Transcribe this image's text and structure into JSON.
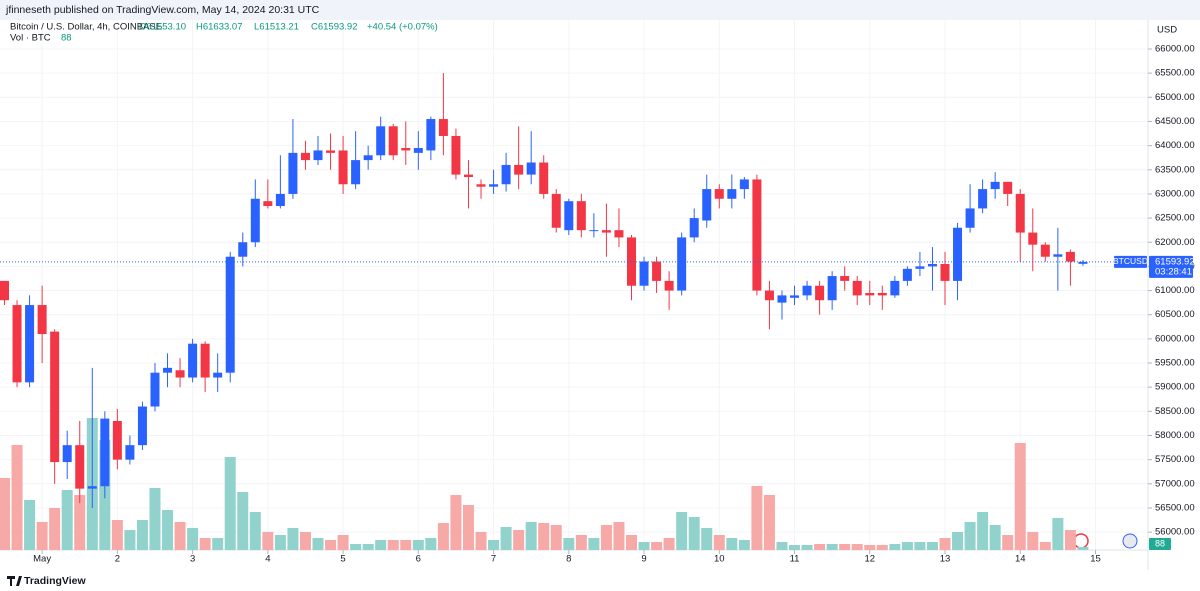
{
  "header": {
    "title": "jfinneseth published on TradingView.com, May 14, 2024 20:31 UTC"
  },
  "footer": {
    "brand": "TradingView"
  },
  "chart_data": {
    "type": "candlestick",
    "legend": {
      "symbol": "Bitcoin / U.S. Dollar, 4h, COINBASE",
      "open": "O61553.10",
      "high": "H61633.07",
      "low": "L61513.21",
      "close": "C61593.92",
      "change": "+40.54 (+0.07%)",
      "volume_title": "Vol · BTC"
    },
    "currency": "USD",
    "price_label": {
      "symbol": "BTCUSD",
      "countdown": "03:28:41"
    },
    "up_color": "#2962ff",
    "down_color": "#f23645",
    "volume_up_color": "#92d2cc",
    "volume_down_color": "#f7a9a8",
    "open": [
      61200,
      60700,
      59100,
      60700,
      60150,
      57450,
      57800,
      56900,
      56950,
      58300,
      57500,
      57800,
      58600,
      59300,
      59350,
      59200,
      59900,
      59200,
      59300,
      61700,
      62000,
      62850,
      62750,
      63000,
      63850,
      63700,
      63900,
      63900,
      63200,
      63700,
      63800,
      64400,
      63950,
      63850,
      63900,
      64550,
      64200,
      63400,
      63200,
      63150,
      63200,
      63600,
      63400,
      63650,
      63000,
      62250,
      62850,
      62250,
      62250,
      62250,
      62100,
      61100,
      61600,
      61200,
      61000,
      62100,
      62450,
      63100,
      62900,
      63100,
      63300,
      61000,
      60750,
      60850,
      60900,
      61100,
      60800,
      61300,
      61200,
      60950,
      60950,
      60900,
      61200,
      61450,
      61500,
      61550,
      61200,
      62300,
      62700,
      63100,
      63250,
      63000,
      62200,
      61950,
      61700,
      61800,
      61553.1
    ],
    "high": [
      61200,
      60800,
      60900,
      61100,
      60200,
      58100,
      58300,
      59400,
      58500,
      58550,
      58000,
      58700,
      59500,
      59700,
      59600,
      60000,
      59950,
      59700,
      61800,
      62200,
      63300,
      63300,
      63800,
      64550,
      64100,
      64200,
      64250,
      64200,
      64300,
      64000,
      64600,
      64450,
      64500,
      64300,
      64600,
      65500,
      64350,
      63700,
      63300,
      63500,
      63850,
      64400,
      64300,
      63800,
      63100,
      62900,
      63000,
      62600,
      62800,
      62700,
      62150,
      61700,
      61700,
      61400,
      62200,
      62700,
      63400,
      63200,
      63400,
      63350,
      63400,
      61200,
      61000,
      61100,
      61200,
      61200,
      61400,
      61500,
      61300,
      61200,
      61100,
      61300,
      61500,
      61800,
      61900,
      61800,
      62400,
      63200,
      63300,
      63450,
      63250,
      63100,
      62700,
      62000,
      62300,
      61850,
      61633.07
    ],
    "low": [
      60700,
      59000,
      59000,
      59500,
      57000,
      57100,
      56600,
      56500,
      56700,
      57300,
      57400,
      57700,
      58500,
      59000,
      59000,
      59100,
      58900,
      58900,
      59100,
      61500,
      61900,
      62700,
      62700,
      62900,
      63500,
      63600,
      63500,
      63000,
      63100,
      63500,
      63700,
      63700,
      63600,
      63500,
      63700,
      63800,
      63300,
      62700,
      62900,
      63000,
      63050,
      63100,
      63200,
      62900,
      62200,
      62150,
      62100,
      62100,
      61700,
      61900,
      60800,
      61000,
      60950,
      60600,
      60900,
      62000,
      62300,
      62700,
      62700,
      62900,
      60900,
      60200,
      60400,
      60700,
      60800,
      60500,
      60600,
      61000,
      60700,
      60700,
      60600,
      60850,
      61100,
      61300,
      61000,
      60700,
      60800,
      62200,
      62600,
      62900,
      62750,
      61600,
      61400,
      61600,
      61000,
      61100,
      61513.21
    ],
    "close": [
      60800,
      59100,
      60700,
      60100,
      57450,
      57800,
      56900,
      56950,
      58350,
      57500,
      57800,
      58600,
      59300,
      59400,
      59200,
      59900,
      59200,
      59300,
      61700,
      62000,
      62900,
      62750,
      63000,
      63850,
      63700,
      63900,
      63850,
      63200,
      63700,
      63800,
      64400,
      63800,
      63900,
      63950,
      64550,
      64200,
      63400,
      63350,
      63150,
      63200,
      63600,
      63400,
      63650,
      63000,
      62300,
      62850,
      62250,
      62250,
      62200,
      62100,
      61100,
      61600,
      61200,
      61000,
      62100,
      62500,
      63100,
      62900,
      63100,
      63300,
      61000,
      60800,
      60900,
      60900,
      61100,
      60800,
      61300,
      61200,
      60900,
      60900,
      60900,
      61200,
      61450,
      61500,
      61550,
      61200,
      62300,
      62700,
      63100,
      63250,
      63000,
      62200,
      61950,
      61700,
      61750,
      61600,
      61593.92
    ],
    "volumes": [
      2088,
      3045,
      1450,
      812,
      1218,
      1740,
      1595,
      3828,
      3190,
      870,
      580,
      870,
      1798,
      1160,
      812,
      638,
      348,
      348,
      2697,
      1682,
      1102,
      522,
      435,
      638,
      522,
      348,
      290,
      435,
      174,
      174,
      290,
      290,
      290,
      290,
      348,
      783,
      1595,
      1305,
      522,
      290,
      667,
      580,
      812,
      783,
      725,
      348,
      435,
      348,
      725,
      812,
      435,
      232,
      232,
      348,
      1102,
      957,
      638,
      435,
      348,
      290,
      1856,
      1595,
      232,
      145,
      145,
      174,
      174,
      174,
      174,
      145,
      145,
      174,
      232,
      232,
      232,
      348,
      522,
      812,
      1102,
      725,
      435,
      3103,
      522,
      232,
      928,
      580,
      88
    ],
    "xticks": [
      {
        "value": 3,
        "label": "May"
      },
      {
        "value": 9,
        "label": "2"
      },
      {
        "value": 15,
        "label": "3"
      },
      {
        "value": 21,
        "label": "4"
      },
      {
        "value": 27,
        "label": "5"
      },
      {
        "value": 33,
        "label": "6"
      },
      {
        "value": 39,
        "label": "7"
      },
      {
        "value": 45,
        "label": "8"
      },
      {
        "value": 51,
        "label": "9"
      },
      {
        "value": 57,
        "label": "10"
      },
      {
        "value": 63,
        "label": "11"
      },
      {
        "value": 69,
        "label": "12"
      },
      {
        "value": 75,
        "label": "13"
      },
      {
        "value": 81,
        "label": "14"
      },
      {
        "value": 87,
        "label": "15"
      }
    ],
    "ylim": [
      55630,
      66600
    ],
    "yticks": [
      {
        "value": 56000,
        "label": "56000.00"
      },
      {
        "value": 56500,
        "label": "56500.00"
      },
      {
        "value": 57000,
        "label": "57000.00"
      },
      {
        "value": 57500,
        "label": "57500.00"
      },
      {
        "value": 58000,
        "label": "58000.00"
      },
      {
        "value": 58500,
        "label": "58500.00"
      },
      {
        "value": 59000,
        "label": "59000.00"
      },
      {
        "value": 59500,
        "label": "59500.00"
      },
      {
        "value": 60000,
        "label": "60000.00"
      },
      {
        "value": 60500,
        "label": "60500.00"
      },
      {
        "value": 61000,
        "label": "61000.00"
      },
      {
        "value": 61500,
        "label": "61500.00"
      },
      {
        "value": 62000,
        "label": "62000.00"
      },
      {
        "value": 62500,
        "label": "62500.00"
      },
      {
        "value": 63000,
        "label": "63000.00"
      },
      {
        "value": 63500,
        "label": "63500.00"
      },
      {
        "value": 64000,
        "label": "64000.00"
      },
      {
        "value": 64500,
        "label": "64500.00"
      },
      {
        "value": 65000,
        "label": "65000.00"
      },
      {
        "value": 65500,
        "label": "65500.00"
      },
      {
        "value": 66000,
        "label": "66000.00"
      }
    ]
  }
}
